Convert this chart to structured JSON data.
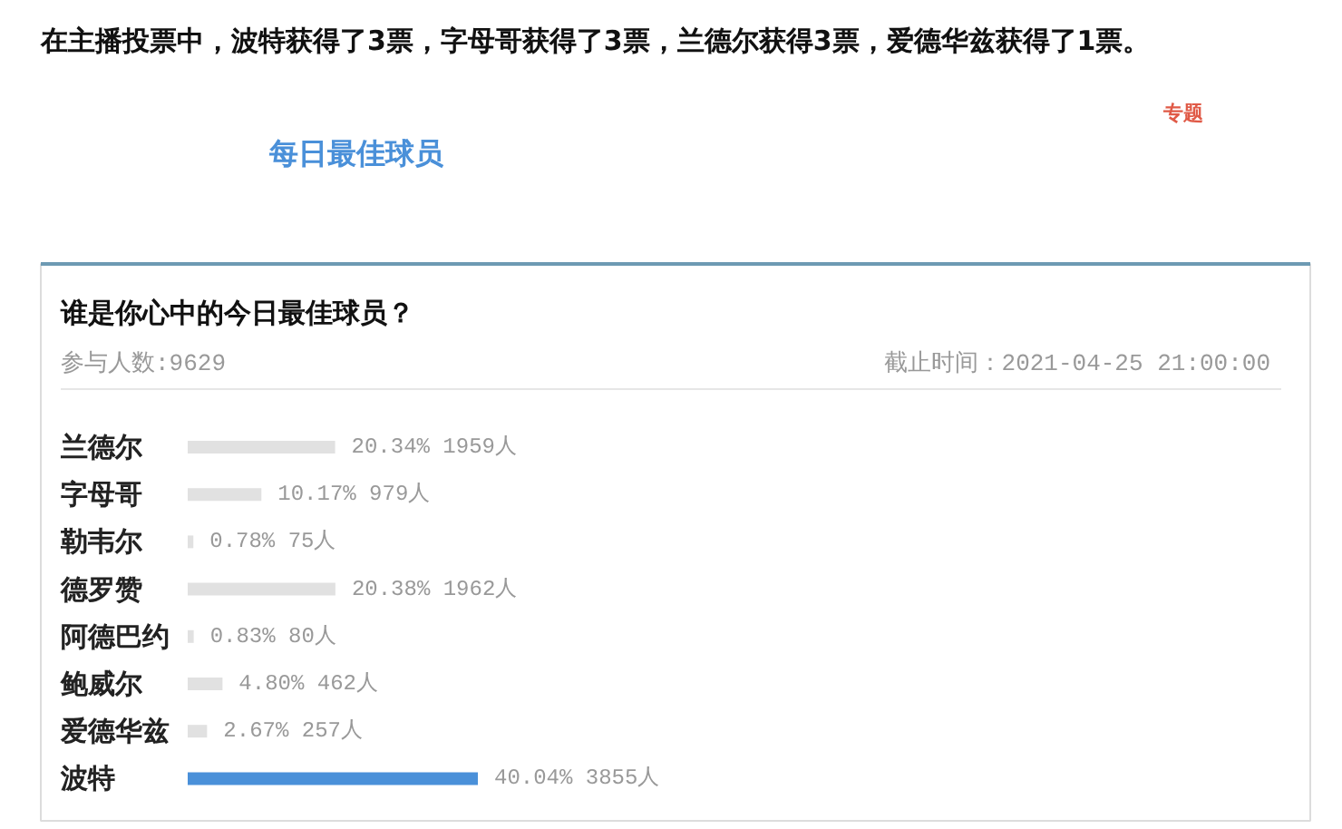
{
  "chart_data": {
    "type": "bar",
    "orientation": "horizontal",
    "title": "谁是你心中的今日最佳球员？",
    "subtitle": "参与人数:9629",
    "annotations": [
      "在主播投票中，波特获得了3票，字母哥获得了3票，兰德尔获得3票，爱德华兹获得了1票。",
      "每日最佳球员",
      "专题",
      "截止时间：2021-04-25 21:00:00"
    ],
    "categories": [
      "兰德尔",
      "字母哥",
      "勒韦尔",
      "德罗赞",
      "阿德巴约",
      "鲍威尔",
      "爱德华兹",
      "波特"
    ],
    "values": [
      20.34,
      10.17,
      0.78,
      20.38,
      0.83,
      4.8,
      2.67,
      40.04
    ],
    "colors": [
      "#e1e1e1",
      "#e1e1e1",
      "#e1e1e1",
      "#e1e1e1",
      "#e1e1e1",
      "#e1e1e1",
      "#e1e1e1",
      "#4a90d9"
    ],
    "value_labels": [
      "20.34% 1959人",
      "10.17% 979人",
      "0.78% 75人",
      "20.38% 1962人",
      "0.83% 80人",
      "4.80% 462人",
      "2.67% 257人",
      "40.04% 3855人"
    ]
  }
}
